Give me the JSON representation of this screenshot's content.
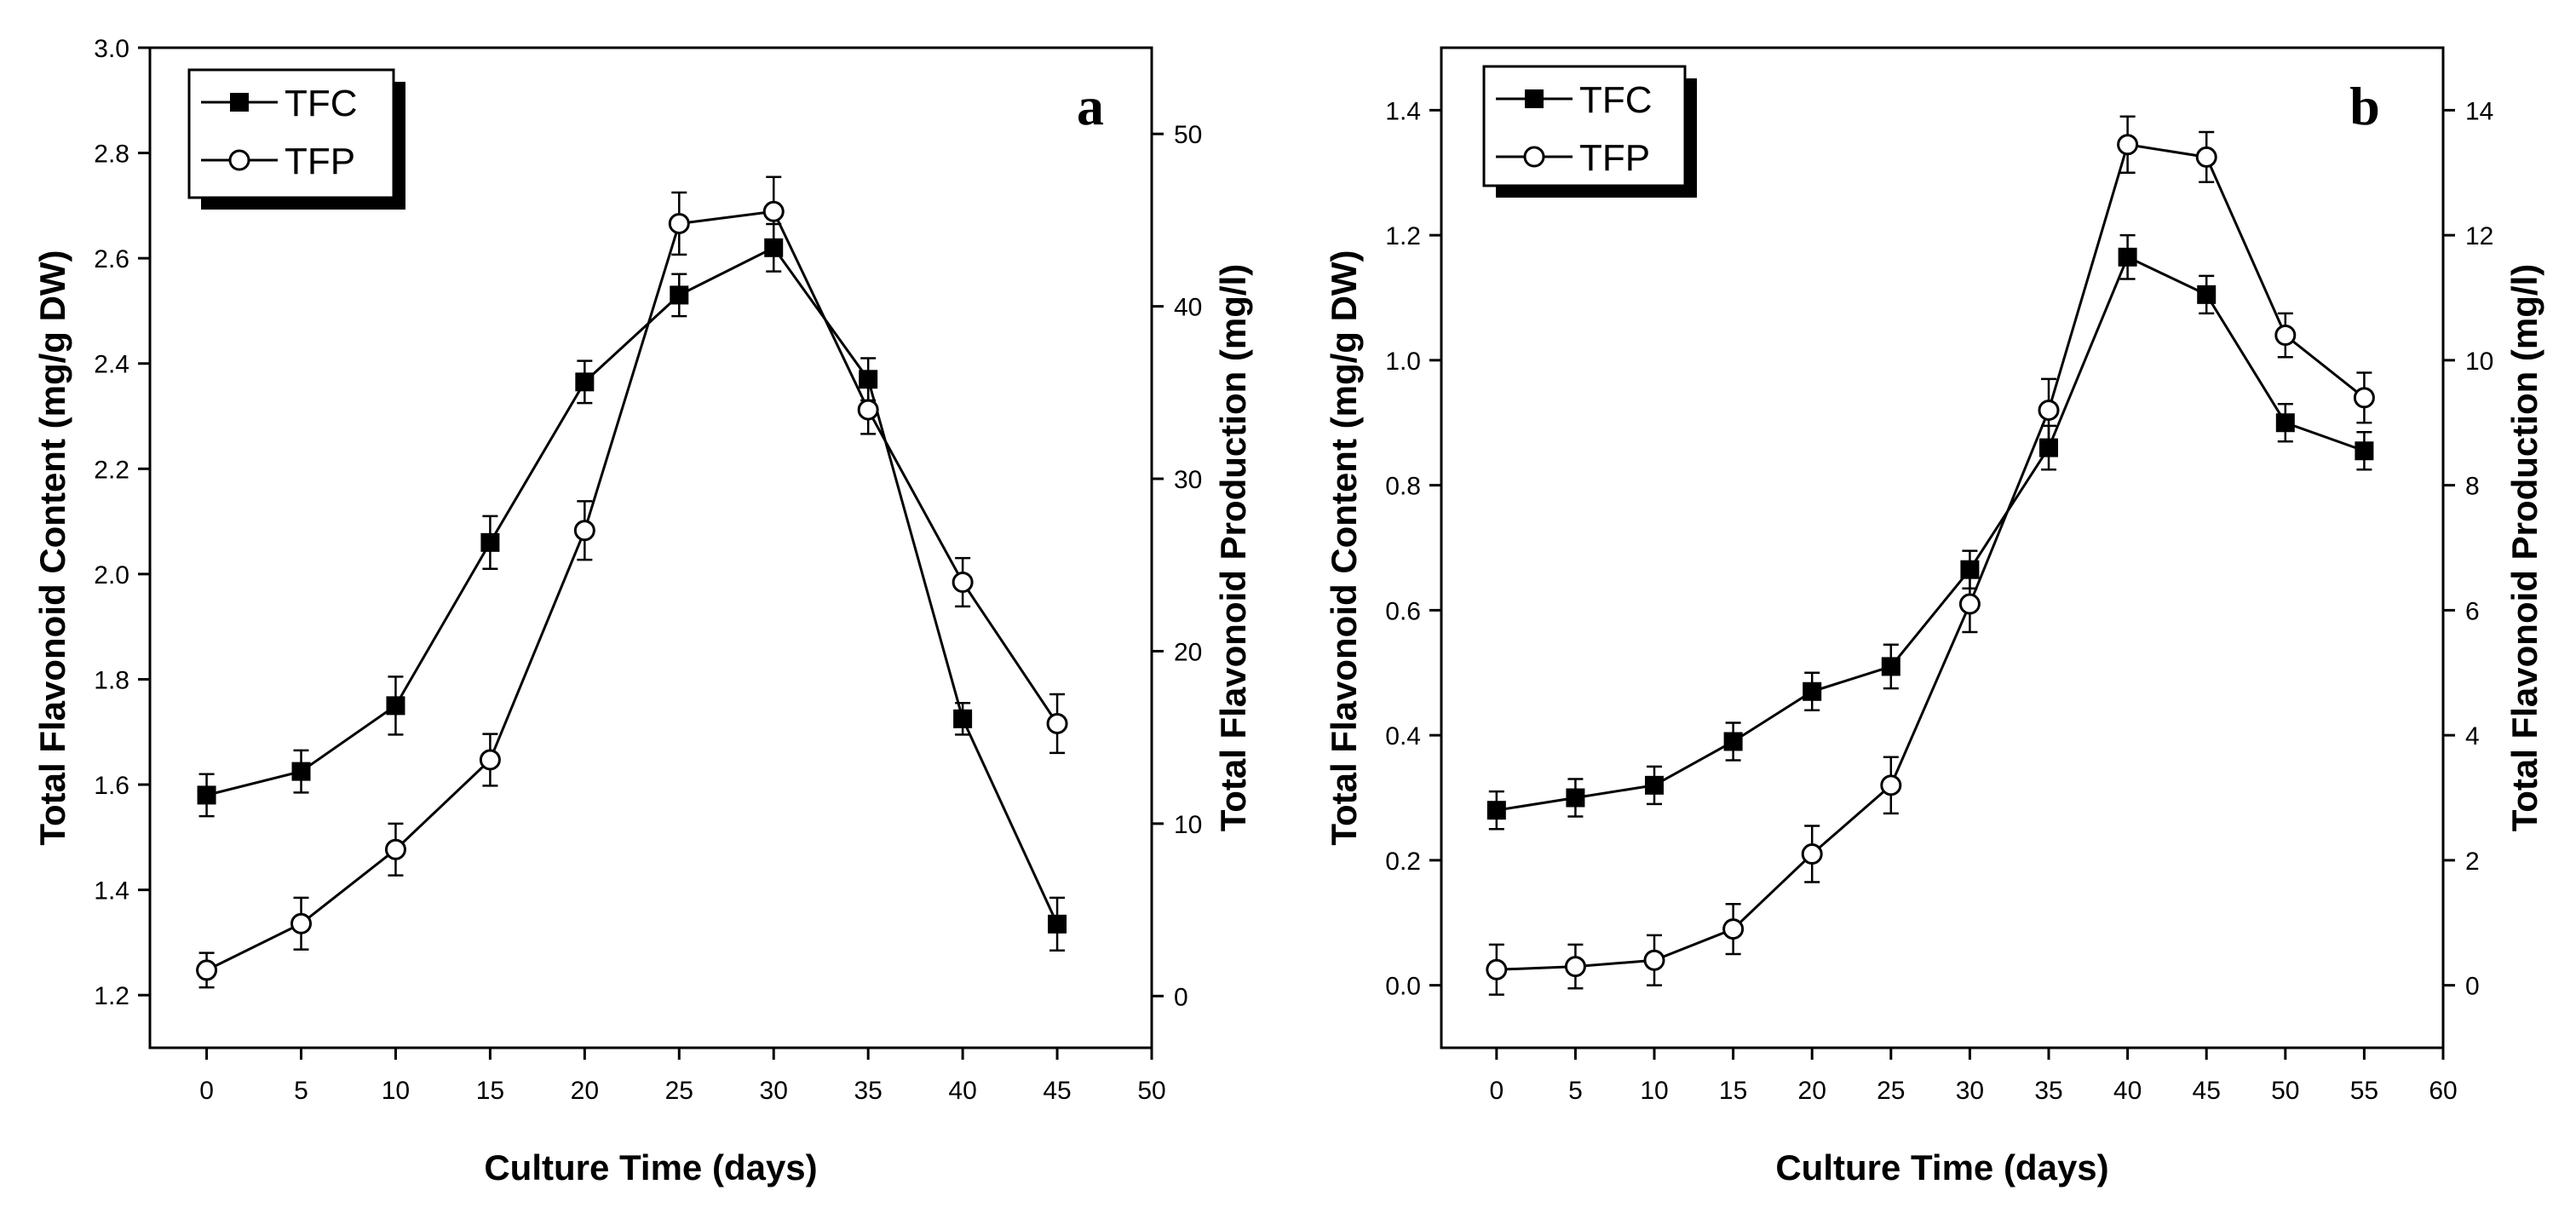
{
  "chart_data": [
    {
      "type": "line",
      "panel_label": "a",
      "x": [
        0,
        5,
        10,
        15,
        20,
        25,
        30,
        35,
        40,
        45
      ],
      "xlim": [
        -3,
        50
      ],
      "xticks": [
        0,
        5,
        10,
        15,
        20,
        25,
        30,
        35,
        40,
        45,
        50
      ],
      "xtick_labels": [
        "0",
        "5",
        "10",
        "15",
        "20",
        "25",
        "30",
        "35",
        "40",
        "45",
        "50"
      ],
      "xlabel": "Culture Time (days)",
      "ylabel_left": "Total Flavonoid Content (mg/g DW)",
      "ylim_left": [
        1.1,
        3.0
      ],
      "yticks_left": [
        1.2,
        1.4,
        1.6,
        1.8,
        2.0,
        2.2,
        2.4,
        2.6,
        2.8,
        3.0
      ],
      "ytick_labels_left": [
        "1.2",
        "1.4",
        "1.6",
        "1.8",
        "2.0",
        "2.2",
        "2.4",
        "2.6",
        "2.8",
        "3.0"
      ],
      "ylabel_right": "Total Flavonoid Production (mg/l)",
      "ylim_right": [
        -3,
        55
      ],
      "yticks_right": [
        0,
        10,
        20,
        30,
        40,
        50
      ],
      "ytick_labels_right": [
        "0",
        "10",
        "20",
        "30",
        "40",
        "50"
      ],
      "legend_position": "top-left",
      "series": [
        {
          "name": "TFC",
          "axis": "left",
          "marker": "filled-square",
          "values": [
            1.58,
            1.625,
            1.75,
            2.06,
            2.365,
            2.53,
            2.62,
            2.37,
            1.725,
            1.335
          ],
          "errors": [
            0.04,
            0.04,
            0.055,
            0.05,
            0.04,
            0.04,
            0.045,
            0.04,
            0.03,
            0.05
          ]
        },
        {
          "name": "TFP",
          "axis": "right",
          "marker": "open-circle",
          "values": [
            1.5,
            4.2,
            8.5,
            13.7,
            27.0,
            44.8,
            45.5,
            34.0,
            24.0,
            15.8
          ],
          "errors": [
            1.0,
            1.5,
            1.5,
            1.5,
            1.7,
            1.8,
            2.0,
            1.4,
            1.4,
            1.7
          ]
        }
      ]
    },
    {
      "type": "line",
      "panel_label": "b",
      "x": [
        0,
        5,
        10,
        15,
        20,
        25,
        30,
        35,
        40,
        45,
        50,
        55
      ],
      "xlim": [
        -3.5,
        60
      ],
      "xticks": [
        0,
        5,
        10,
        15,
        20,
        25,
        30,
        35,
        40,
        45,
        50,
        55,
        60
      ],
      "xtick_labels": [
        "0",
        "5",
        "10",
        "15",
        "20",
        "25",
        "30",
        "35",
        "40",
        "45",
        "50",
        "55",
        "60"
      ],
      "xlabel": "Culture Time (days)",
      "ylabel_left": "Total Flavonoid Content (mg/g DW)",
      "ylim_left": [
        -0.1,
        1.5
      ],
      "yticks_left": [
        0.0,
        0.2,
        0.4,
        0.6,
        0.8,
        1.0,
        1.2,
        1.4
      ],
      "ytick_labels_left": [
        "0.0",
        "0.2",
        "0.4",
        "0.6",
        "0.8",
        "1.0",
        "1.2",
        "1.4"
      ],
      "ylabel_right": "Total Flavonoid Production (mg/l)",
      "ylim_right": [
        -1,
        15
      ],
      "yticks_right": [
        0,
        2,
        4,
        6,
        8,
        10,
        12,
        14
      ],
      "ytick_labels_right": [
        "0",
        "2",
        "4",
        "6",
        "8",
        "10",
        "12",
        "14"
      ],
      "legend_position": "top-left",
      "series": [
        {
          "name": "TFC",
          "axis": "left",
          "marker": "filled-square",
          "values": [
            0.28,
            0.3,
            0.32,
            0.39,
            0.47,
            0.51,
            0.665,
            0.86,
            1.165,
            1.105,
            0.9,
            0.855
          ],
          "errors": [
            0.03,
            0.03,
            0.03,
            0.03,
            0.03,
            0.035,
            0.03,
            0.035,
            0.035,
            0.03,
            0.03,
            0.03
          ]
        },
        {
          "name": "TFP",
          "axis": "right",
          "marker": "open-circle",
          "values": [
            0.25,
            0.3,
            0.4,
            0.9,
            2.1,
            3.2,
            6.1,
            9.2,
            13.45,
            13.25,
            10.4,
            9.4
          ],
          "errors": [
            0.4,
            0.35,
            0.4,
            0.4,
            0.45,
            0.45,
            0.45,
            0.5,
            0.45,
            0.4,
            0.35,
            0.4
          ]
        }
      ]
    }
  ]
}
